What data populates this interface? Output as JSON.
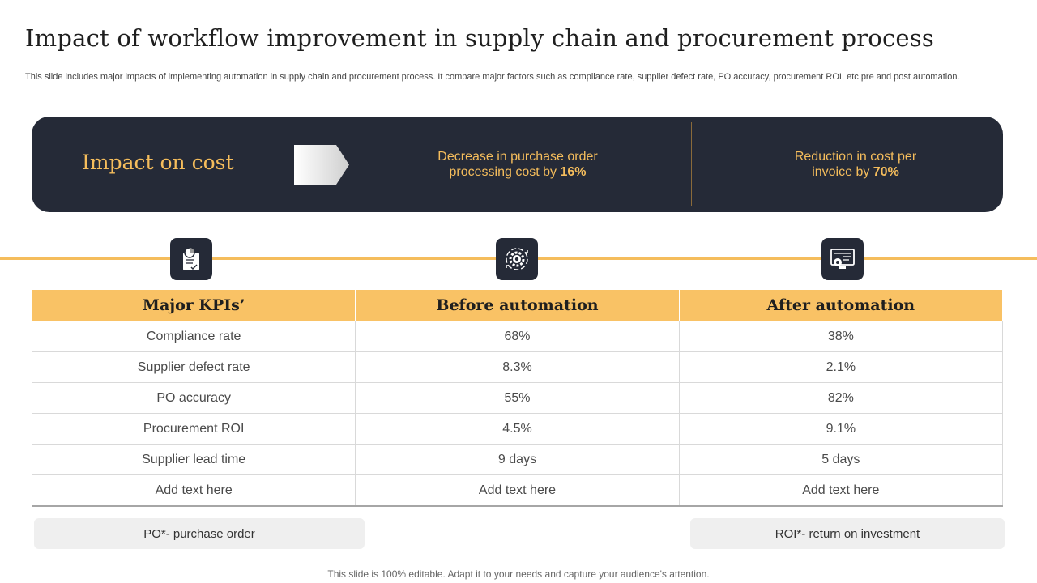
{
  "header": {
    "title": "Impact of workflow improvement in supply chain and procurement process",
    "subtitle": "This slide includes major impacts of implementing automation in supply chain and procurement process. It compare major factors such as compliance rate, supplier defect rate, PO accuracy, procurement ROI, etc pre and post automation."
  },
  "banner": {
    "title": "Impact on cost",
    "stat1": {
      "text_line1": "Decrease in purchase order",
      "text_line2": "processing cost by ",
      "value": "16%"
    },
    "stat2": {
      "text_line1": "Reduction in cost per",
      "text_line2": "invoice by ",
      "value": "70%"
    }
  },
  "icons": [
    "clipboard-chart-icon",
    "gear-cycle-icon",
    "monitor-settings-icon"
  ],
  "table": {
    "headers": [
      "Major KPIs’",
      "Before automation",
      "After automation"
    ],
    "rows": [
      [
        "Compliance rate",
        "68%",
        "38%"
      ],
      [
        "Supplier defect rate",
        "8.3%",
        "2.1%"
      ],
      [
        "PO accuracy",
        "55%",
        "82%"
      ],
      [
        "Procurement ROI",
        "4.5%",
        "9.1%"
      ],
      [
        "Supplier lead time",
        "9 days",
        "5 days"
      ],
      [
        "Add text here",
        "Add text here",
        "Add text here"
      ]
    ]
  },
  "notes": {
    "po": "PO*- purchase order",
    "roi": "ROI*- return on investment"
  },
  "footer": "This slide is 100% editable. Adapt it to your needs and capture your audience's attention.",
  "colors": {
    "accent": "#f5bd5c",
    "dark": "#252a37",
    "header_fill": "#f9c265"
  }
}
